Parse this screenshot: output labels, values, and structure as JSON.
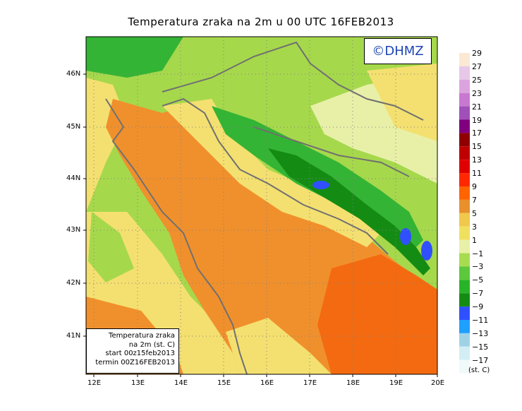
{
  "title": "Temperatura zraka na 2m u 00 UTC 16FEB2013",
  "logo": "©DHMZ",
  "info_box": [
    "Temperatura zraka",
    "na 2m (st. C)",
    "start 00z15feb2013",
    "termin 00Z16FEB2013"
  ],
  "lat_labels": [
    "46N",
    "45N",
    "44N",
    "43N",
    "42N",
    "41N"
  ],
  "lon_labels": [
    "12E",
    "13E",
    "14E",
    "15E",
    "16E",
    "17E",
    "18E",
    "19E",
    "20E"
  ],
  "legend": {
    "unit": "(st. C)",
    "labels": [
      "29",
      "27",
      "25",
      "23",
      "21",
      "19",
      "17",
      "15",
      "13",
      "11",
      "9",
      "7",
      "5",
      "3",
      "1",
      "−1",
      "−3",
      "−5",
      "−7",
      "−9",
      "−11",
      "−13",
      "−15",
      "−17"
    ],
    "colors_top_to_bottom": [
      "#fbe9d3",
      "#e8c8e8",
      "#dba4df",
      "#c878d0",
      "#a050b8",
      "#800080",
      "#900000",
      "#c00000",
      "#e00000",
      "#ff2800",
      "#ff6400",
      "#e8902c",
      "#f0c84c",
      "#f0e060",
      "#e8f0a8",
      "#a8dc50",
      "#5cc83c",
      "#28b428",
      "#148c14",
      "#3050ff",
      "#1ea0ff",
      "#a0d2e6",
      "#d2eef4",
      "#f0fafa"
    ]
  },
  "colors": {
    "sea": "#f0902c",
    "sea_south": "#f46a10",
    "coast": "#f4e070",
    "inland": "#a6d84c",
    "mountains": "#34b434",
    "borders": "#707070"
  }
}
